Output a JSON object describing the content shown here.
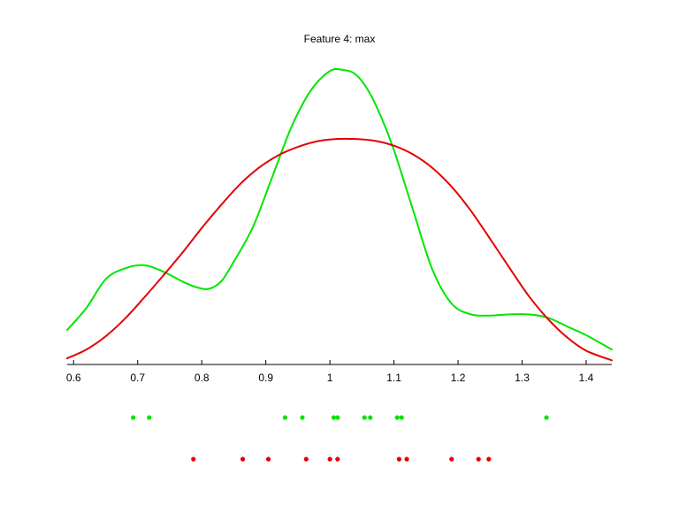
{
  "chart_data": {
    "type": "line",
    "title": "Feature 4: max",
    "xlabel": "",
    "ylabel": "",
    "xlim": [
      0.59,
      1.44
    ],
    "x_ticks": [
      0.6,
      0.7,
      0.8,
      0.9,
      1,
      1.1,
      1.2,
      1.3,
      1.4
    ],
    "x_tick_labels": [
      "0.6",
      "0.7",
      "0.8",
      "0.9",
      "1",
      "1.1",
      "1.2",
      "1.3",
      "1.4"
    ],
    "grid": false,
    "y_axis_visible": false,
    "series": [
      {
        "color": "#00e600",
        "x": [
          0.59,
          0.62,
          0.65,
          0.68,
          0.71,
          0.74,
          0.77,
          0.79,
          0.81,
          0.83,
          0.85,
          0.88,
          0.91,
          0.94,
          0.97,
          1.0,
          1.02,
          1.04,
          1.06,
          1.08,
          1.1,
          1.13,
          1.16,
          1.19,
          1.22,
          1.25,
          1.28,
          1.31,
          1.34,
          1.37,
          1.4,
          1.44
        ],
        "y": [
          0.112,
          0.187,
          0.285,
          0.322,
          0.333,
          0.311,
          0.277,
          0.259,
          0.252,
          0.277,
          0.345,
          0.464,
          0.634,
          0.805,
          0.929,
          0.996,
          1.0,
          0.985,
          0.929,
          0.839,
          0.726,
          0.52,
          0.318,
          0.202,
          0.165,
          0.161,
          0.165,
          0.165,
          0.154,
          0.124,
          0.094,
          0.045
        ]
      },
      {
        "color": "#e60000",
        "x": [
          0.59,
          0.62,
          0.65,
          0.68,
          0.71,
          0.74,
          0.77,
          0.8,
          0.83,
          0.86,
          0.89,
          0.92,
          0.95,
          0.98,
          1.01,
          1.04,
          1.07,
          1.1,
          1.13,
          1.16,
          1.19,
          1.22,
          1.25,
          1.28,
          1.31,
          1.34,
          1.37,
          1.4,
          1.44
        ],
        "y": [
          0.015,
          0.045,
          0.09,
          0.15,
          0.222,
          0.298,
          0.376,
          0.46,
          0.538,
          0.61,
          0.667,
          0.709,
          0.737,
          0.756,
          0.764,
          0.764,
          0.758,
          0.741,
          0.711,
          0.665,
          0.601,
          0.519,
          0.423,
          0.325,
          0.229,
          0.15,
          0.087,
          0.041,
          0.008
        ]
      }
    ],
    "rug": [
      {
        "color": "#00e600",
        "points": [
          0.693,
          0.718,
          0.93,
          0.957,
          1.006,
          1.012,
          1.054,
          1.063,
          1.105,
          1.112,
          1.338
        ]
      },
      {
        "color": "#e60000",
        "points": [
          0.787,
          0.864,
          0.904,
          0.963,
          1.0,
          1.012,
          1.108,
          1.12,
          1.19,
          1.232,
          1.248
        ]
      }
    ]
  }
}
